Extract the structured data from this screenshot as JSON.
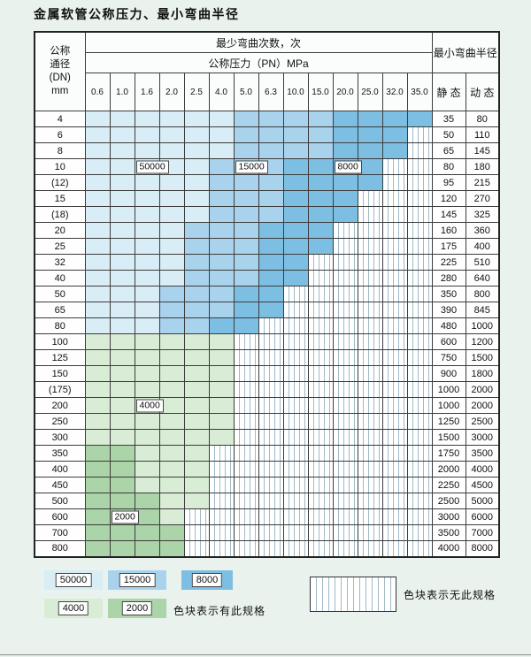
{
  "title": "金属软管公称压力、最小弯曲半径",
  "colors": {
    "page_bg": "#e9f2ec",
    "b1": "#d9edf7",
    "b2": "#a9d2ec",
    "b3": "#7dbfe2",
    "g1": "#d9ecd5",
    "g2": "#abd4a8",
    "stripe": "#9fb9c7"
  },
  "header": {
    "dn_lines": [
      "公称",
      "通径",
      "(DN)",
      "mm"
    ],
    "bend_times": "最少弯曲次数，次",
    "pressure": "公称压力（PN）MPa",
    "radius": "最小弯曲半径",
    "static": "静 态",
    "dynamic": "动 态",
    "pressure_cols": [
      "0.6",
      "1.0",
      "1.6",
      "2.0",
      "2.5",
      "4.0",
      "5.0",
      "6.3",
      "10.0",
      "15.0",
      "20.0",
      "25.0",
      "32.0",
      "35.0"
    ]
  },
  "rows": [
    {
      "dn": "4",
      "static": "35",
      "dynamic": "80",
      "bands": [
        [
          "b1",
          6
        ],
        [
          "b2",
          4
        ],
        [
          "b3",
          4
        ]
      ]
    },
    {
      "dn": "6",
      "static": "50",
      "dynamic": "110",
      "bands": [
        [
          "b1",
          6
        ],
        [
          "b2",
          4
        ],
        [
          "b3",
          3
        ]
      ]
    },
    {
      "dn": "8",
      "static": "65",
      "dynamic": "145",
      "bands": [
        [
          "b1",
          6
        ],
        [
          "b2",
          4
        ],
        [
          "b3",
          3
        ]
      ]
    },
    {
      "dn": "10",
      "static": "80",
      "dynamic": "180",
      "bands": [
        [
          "b1",
          5
        ],
        [
          "b2",
          3
        ],
        [
          "b3",
          4
        ]
      ],
      "labels": [
        {
          "col": 3,
          "text": "50000"
        },
        {
          "col": 7,
          "text": "15000"
        },
        {
          "col": 11,
          "text": "8000"
        }
      ]
    },
    {
      "dn": "(12)",
      "static": "95",
      "dynamic": "215",
      "bands": [
        [
          "b1",
          5
        ],
        [
          "b2",
          3
        ],
        [
          "b3",
          4
        ]
      ]
    },
    {
      "dn": "15",
      "static": "120",
      "dynamic": "270",
      "bands": [
        [
          "b1",
          5
        ],
        [
          "b2",
          3
        ],
        [
          "b3",
          3
        ]
      ]
    },
    {
      "dn": "(18)",
      "static": "145",
      "dynamic": "325",
      "bands": [
        [
          "b1",
          5
        ],
        [
          "b2",
          3
        ],
        [
          "b3",
          3
        ]
      ]
    },
    {
      "dn": "20",
      "static": "160",
      "dynamic": "360",
      "bands": [
        [
          "b1",
          4
        ],
        [
          "b2",
          3
        ],
        [
          "b3",
          3
        ]
      ]
    },
    {
      "dn": "25",
      "static": "175",
      "dynamic": "400",
      "bands": [
        [
          "b1",
          4
        ],
        [
          "b2",
          3
        ],
        [
          "b3",
          3
        ]
      ]
    },
    {
      "dn": "32",
      "static": "225",
      "dynamic": "510",
      "bands": [
        [
          "b1",
          4
        ],
        [
          "b2",
          3
        ],
        [
          "b3",
          2
        ]
      ]
    },
    {
      "dn": "40",
      "static": "280",
      "dynamic": "640",
      "bands": [
        [
          "b1",
          4
        ],
        [
          "b2",
          3
        ],
        [
          "b3",
          2
        ]
      ]
    },
    {
      "dn": "50",
      "static": "350",
      "dynamic": "800",
      "bands": [
        [
          "b1",
          3
        ],
        [
          "b2",
          3
        ],
        [
          "b3",
          2
        ]
      ]
    },
    {
      "dn": "65",
      "static": "390",
      "dynamic": "845",
      "bands": [
        [
          "b1",
          3
        ],
        [
          "b2",
          3
        ],
        [
          "b3",
          2
        ]
      ]
    },
    {
      "dn": "80",
      "static": "480",
      "dynamic": "1000",
      "bands": [
        [
          "b1",
          3
        ],
        [
          "b2",
          2
        ],
        [
          "b3",
          2
        ]
      ]
    },
    {
      "dn": "100",
      "static": "600",
      "dynamic": "1200",
      "bands": [
        [
          "g1",
          6
        ]
      ]
    },
    {
      "dn": "125",
      "static": "750",
      "dynamic": "1500",
      "bands": [
        [
          "g1",
          6
        ]
      ]
    },
    {
      "dn": "150",
      "static": "900",
      "dynamic": "1800",
      "bands": [
        [
          "g1",
          6
        ]
      ]
    },
    {
      "dn": "(175)",
      "static": "1000",
      "dynamic": "2000",
      "bands": [
        [
          "g1",
          6
        ]
      ]
    },
    {
      "dn": "200",
      "static": "1000",
      "dynamic": "2000",
      "bands": [
        [
          "g1",
          6
        ]
      ],
      "labels": [
        {
          "col": 3,
          "text": "4000"
        }
      ]
    },
    {
      "dn": "250",
      "static": "1250",
      "dynamic": "2500",
      "bands": [
        [
          "g1",
          6
        ]
      ]
    },
    {
      "dn": "300",
      "static": "1500",
      "dynamic": "3000",
      "bands": [
        [
          "g1",
          6
        ]
      ]
    },
    {
      "dn": "350",
      "static": "1750",
      "dynamic": "3500",
      "bands": [
        [
          "g2",
          2
        ],
        [
          "g1",
          3
        ]
      ]
    },
    {
      "dn": "400",
      "static": "2000",
      "dynamic": "4000",
      "bands": [
        [
          "g2",
          2
        ],
        [
          "g1",
          3
        ]
      ]
    },
    {
      "dn": "450",
      "static": "2250",
      "dynamic": "4500",
      "bands": [
        [
          "g2",
          2
        ],
        [
          "g1",
          3
        ]
      ]
    },
    {
      "dn": "500",
      "static": "2500",
      "dynamic": "5000",
      "bands": [
        [
          "g2",
          3
        ],
        [
          "g1",
          2
        ]
      ]
    },
    {
      "dn": "600",
      "static": "3000",
      "dynamic": "6000",
      "bands": [
        [
          "g2",
          3
        ],
        [
          "g1",
          1
        ]
      ],
      "labels": [
        {
          "col": 2,
          "text": "2000"
        }
      ]
    },
    {
      "dn": "700",
      "static": "3500",
      "dynamic": "7000",
      "bands": [
        [
          "g2",
          4
        ]
      ]
    },
    {
      "dn": "800",
      "static": "4000",
      "dynamic": "8000",
      "bands": [
        [
          "g2",
          4
        ]
      ]
    }
  ],
  "legend": {
    "items": [
      {
        "text": "50000",
        "color": "b1"
      },
      {
        "text": "15000",
        "color": "b2"
      },
      {
        "text": "8000",
        "color": "b3"
      },
      {
        "text": "4000",
        "color": "g1"
      },
      {
        "text": "2000",
        "color": "g2"
      }
    ],
    "has_spec": "色块表示有此规格",
    "no_spec": "色块表示无此规格"
  }
}
